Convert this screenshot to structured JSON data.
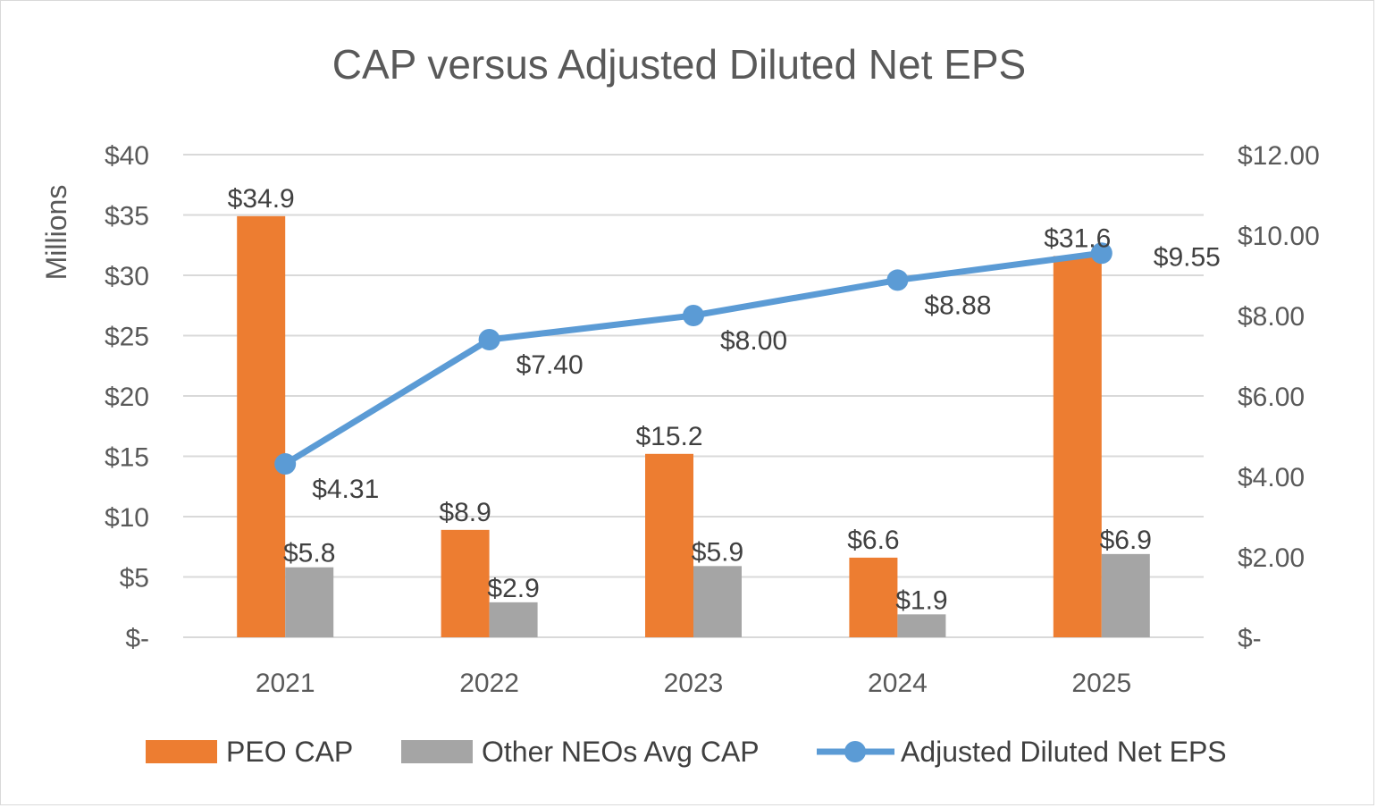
{
  "chart_data": {
    "type": "bar",
    "title": "CAP versus Adjusted Diluted Net EPS",
    "ylabel": "Millions",
    "categories": [
      "2021",
      "2022",
      "2023",
      "2024",
      "2025"
    ],
    "ylim": [
      0,
      40
    ],
    "y2lim": [
      0,
      12
    ],
    "y_ticks": [
      0,
      5,
      10,
      15,
      20,
      25,
      30,
      35,
      40
    ],
    "y_tick_labels": [
      "$-",
      "$5",
      "$10",
      "$15",
      "$20",
      "$25",
      "$30",
      "$35",
      "$40"
    ],
    "y2_ticks": [
      0,
      2,
      4,
      6,
      8,
      10,
      12
    ],
    "y2_tick_labels": [
      "$-",
      "$2.00",
      "$4.00",
      "$6.00",
      "$8.00",
      "$10.00",
      "$12.00"
    ],
    "grid": true,
    "legend_position": "bottom",
    "series": [
      {
        "name": "PEO CAP",
        "type": "bar",
        "axis": "left",
        "color": "#ED7D31",
        "values": [
          34.9,
          8.9,
          15.2,
          6.6,
          31.6
        ],
        "labels": [
          "$34.9",
          "$8.9",
          "$15.2",
          "$6.6",
          "$31.6"
        ]
      },
      {
        "name": "Other NEOs Avg CAP",
        "type": "bar",
        "axis": "left",
        "color": "#A5A5A5",
        "values": [
          5.8,
          2.9,
          5.9,
          1.9,
          6.9
        ],
        "labels": [
          "$5.8",
          "$2.9",
          "$5.9",
          "$1.9",
          "$6.9"
        ]
      },
      {
        "name": "Adjusted Diluted Net EPS",
        "type": "line",
        "axis": "right",
        "color": "#5B9BD5",
        "values": [
          4.31,
          7.4,
          8.0,
          8.88,
          9.55
        ],
        "labels": [
          "$4.31",
          "$7.40",
          "$8.00",
          "$8.88",
          "$9.55"
        ]
      }
    ]
  }
}
